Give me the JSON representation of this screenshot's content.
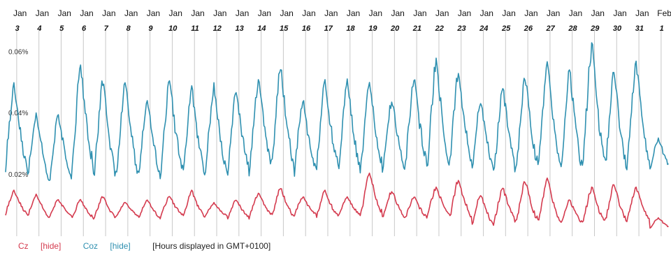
{
  "chart_data": {
    "type": "line",
    "x_day_labels": [
      "3",
      "4",
      "5",
      "6",
      "7",
      "8",
      "9",
      "10",
      "11",
      "12",
      "13",
      "14",
      "15",
      "16",
      "17",
      "18",
      "19",
      "20",
      "21",
      "22",
      "23",
      "24",
      "25",
      "26",
      "27",
      "28",
      "29",
      "30",
      "31",
      "1"
    ],
    "x_month_labels": [
      "Jan",
      "Jan",
      "Jan",
      "Jan",
      "Jan",
      "Jan",
      "Jan",
      "Jan",
      "Jan",
      "Jan",
      "Jan",
      "Jan",
      "Jan",
      "Jan",
      "Jan",
      "Jan",
      "Jan",
      "Jan",
      "Jan",
      "Jan",
      "Jan",
      "Jan",
      "Jan",
      "Jan",
      "Jan",
      "Jan",
      "Jan",
      "Jan",
      "Jan",
      "Feb"
    ],
    "y_ticks": [
      "0.02%",
      "0.04%",
      "0.06%"
    ],
    "y_tick_values": [
      0.02,
      0.04,
      0.06
    ],
    "ylim": [
      0.0,
      0.066
    ],
    "grid": "vertical lines at day boundaries",
    "series": [
      {
        "name": "Coz",
        "color": "#2f90b0",
        "daily_peaks": [
          0.05,
          0.041,
          0.04,
          0.056,
          0.051,
          0.05,
          0.045,
          0.051,
          0.049,
          0.05,
          0.048,
          0.051,
          0.056,
          0.045,
          0.051,
          0.052,
          0.051,
          0.045,
          0.052,
          0.058,
          0.055,
          0.045,
          0.049,
          0.052,
          0.057,
          0.055,
          0.063,
          0.054,
          0.057,
          0.032
        ],
        "daily_troughs": [
          0.018,
          0.015,
          0.016,
          0.017,
          0.015,
          0.016,
          0.016,
          0.017,
          0.016,
          0.016,
          0.017,
          0.019,
          0.018,
          0.017,
          0.018,
          0.017,
          0.018,
          0.019,
          0.019,
          0.018,
          0.019,
          0.018,
          0.017,
          0.018,
          0.017,
          0.016,
          0.018,
          0.017,
          0.019,
          0.02
        ]
      },
      {
        "name": "Cz",
        "color": "#d43a4e",
        "daily_peaks": [
          0.015,
          0.014,
          0.012,
          0.012,
          0.013,
          0.011,
          0.012,
          0.013,
          0.015,
          0.011,
          0.012,
          0.014,
          0.016,
          0.013,
          0.015,
          0.013,
          0.021,
          0.015,
          0.013,
          0.016,
          0.019,
          0.014,
          0.016,
          0.018,
          0.019,
          0.012,
          0.016,
          0.017,
          0.016,
          0.006
        ],
        "daily_troughs": [
          0.006,
          0.005,
          0.006,
          0.005,
          0.005,
          0.006,
          0.005,
          0.006,
          0.005,
          0.006,
          0.005,
          0.006,
          0.005,
          0.006,
          0.005,
          0.006,
          0.005,
          0.005,
          0.005,
          0.006,
          0.004,
          0.002,
          0.003,
          0.003,
          0.002,
          0.003,
          0.003,
          0.003,
          0.004,
          0.002
        ]
      }
    ]
  },
  "legend": {
    "cz_label": "Cz",
    "cz_hide": "[hide]",
    "coz_label": "Coz",
    "coz_hide": "[hide]",
    "note": "[Hours displayed in GMT+0100]"
  }
}
